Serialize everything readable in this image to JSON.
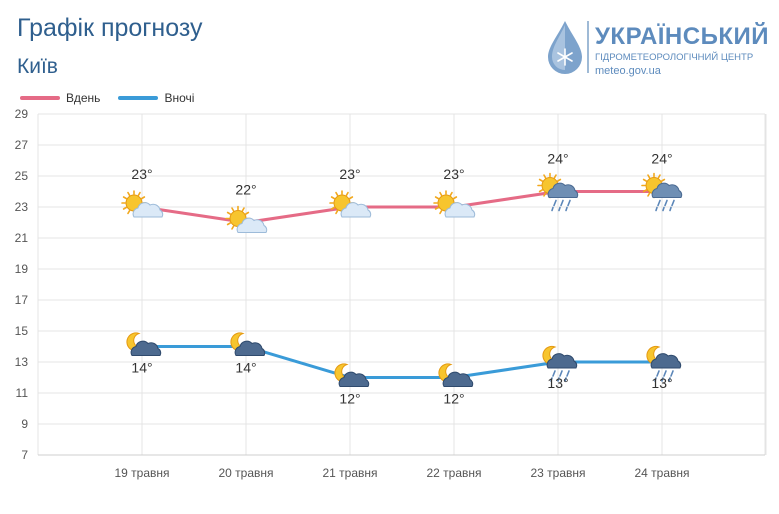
{
  "title": "Графік прогнозу",
  "city": "Київ",
  "logo": {
    "name": "УКРАЇНСЬКИЙ",
    "subtitle": "ГІДРОМЕТЕОРОЛОГІЧНИЙ ЦЕНТР",
    "url": "meteo.gov.ua"
  },
  "colors": {
    "day": "#e56b86",
    "night": "#3a9bd8",
    "grid": "#e4e4e4",
    "text": "#333333"
  },
  "chart_data": {
    "type": "line",
    "categories": [
      "19 травня",
      "20 травня",
      "21 травня",
      "22 травня",
      "23 травня",
      "24 травня"
    ],
    "series": [
      {
        "name": "Вдень",
        "values": [
          23,
          22,
          23,
          23,
          24,
          24
        ],
        "labels": [
          "23°",
          "22°",
          "23°",
          "23°",
          "24°",
          "24°"
        ],
        "icons": [
          "sun-cloud-icon",
          "sun-cloud-icon",
          "sun-cloud-icon",
          "sun-cloud-icon",
          "sun-rain-cloud-icon",
          "sun-rain-cloud-icon"
        ]
      },
      {
        "name": "Вночі",
        "values": [
          14,
          14,
          12,
          12,
          13,
          13
        ],
        "labels": [
          "14°",
          "14°",
          "12°",
          "12°",
          "13°",
          "13°"
        ],
        "icons": [
          "moon-dark-cloud-icon",
          "moon-dark-cloud-icon",
          "moon-dark-cloud-icon",
          "moon-dark-cloud-icon",
          "moon-rain-cloud-icon",
          "moon-rain-cloud-icon"
        ]
      }
    ],
    "y_ticks": [
      "29",
      "27",
      "25",
      "23",
      "21",
      "19",
      "17",
      "15",
      "13",
      "11",
      "9",
      "7"
    ],
    "ylim": [
      7,
      29
    ],
    "grid": true,
    "legend": "top-left"
  }
}
